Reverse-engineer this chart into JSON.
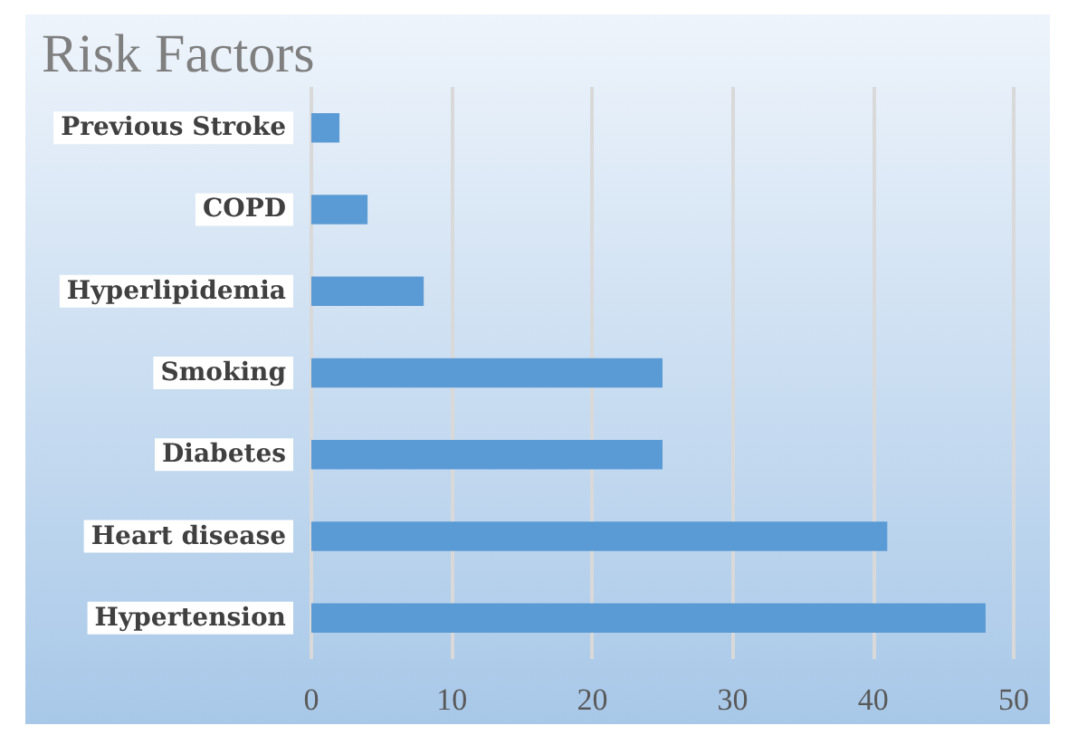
{
  "chart_data": {
    "type": "bar",
    "title": "Risk Factors",
    "orientation": "horizontal",
    "categories": [
      "Previous Stroke",
      "COPD",
      "Hyperlipidemia",
      "Smoking",
      "Diabetes",
      "Heart disease",
      "Hypertension"
    ],
    "values": [
      2,
      4,
      8,
      25,
      25,
      41,
      48
    ],
    "color": "#5b9bd5",
    "xlim": [
      0,
      50
    ],
    "xticks": [
      0,
      10,
      20,
      30,
      40,
      50
    ],
    "grid": "x"
  }
}
